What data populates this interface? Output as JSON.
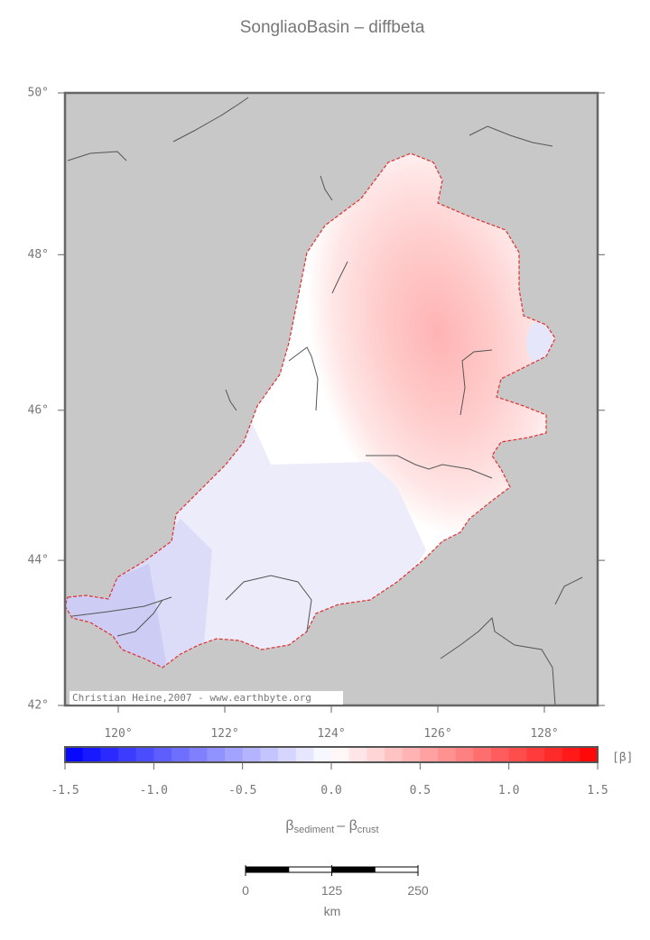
{
  "map": {
    "title": "SongliaoBasin – diffbeta",
    "lonlim": [
      119,
      129
    ],
    "latlim": [
      42,
      50
    ],
    "lon_ticks": [
      {
        "value": 120,
        "label": "120°"
      },
      {
        "value": 122,
        "label": "122°"
      },
      {
        "value": 124,
        "label": "124°"
      },
      {
        "value": 126,
        "label": "126°"
      },
      {
        "value": 128,
        "label": "128°"
      }
    ],
    "lat_ticks": [
      {
        "value": 50,
        "label": "50°"
      },
      {
        "value": 48,
        "label": "48°"
      },
      {
        "value": 46,
        "label": "46°"
      },
      {
        "value": 44,
        "label": "44°"
      },
      {
        "value": 42,
        "label": "42°"
      }
    ],
    "credit": "Christian Heine,2007 - www.earthbyte.org",
    "colorbar": {
      "range": [
        -1.5,
        1.5
      ],
      "ticks": [
        {
          "value": -1.5,
          "label": "-1.5"
        },
        {
          "value": -1.0,
          "label": "-1.0"
        },
        {
          "value": -0.5,
          "label": "-0.5"
        },
        {
          "value": 0,
          "label": "0.0"
        },
        {
          "value": 0.5,
          "label": "0.5"
        },
        {
          "value": 1.0,
          "label": "1.0"
        },
        {
          "value": 1.5,
          "label": "1.5"
        }
      ],
      "unit": "[β]",
      "label": {
        "symbol": "β",
        "sub1": "sediment",
        "mid": "– β",
        "sub2": "crust"
      }
    },
    "scalebar": {
      "ticks": [
        0,
        125,
        250
      ],
      "unit": "km"
    }
  }
}
